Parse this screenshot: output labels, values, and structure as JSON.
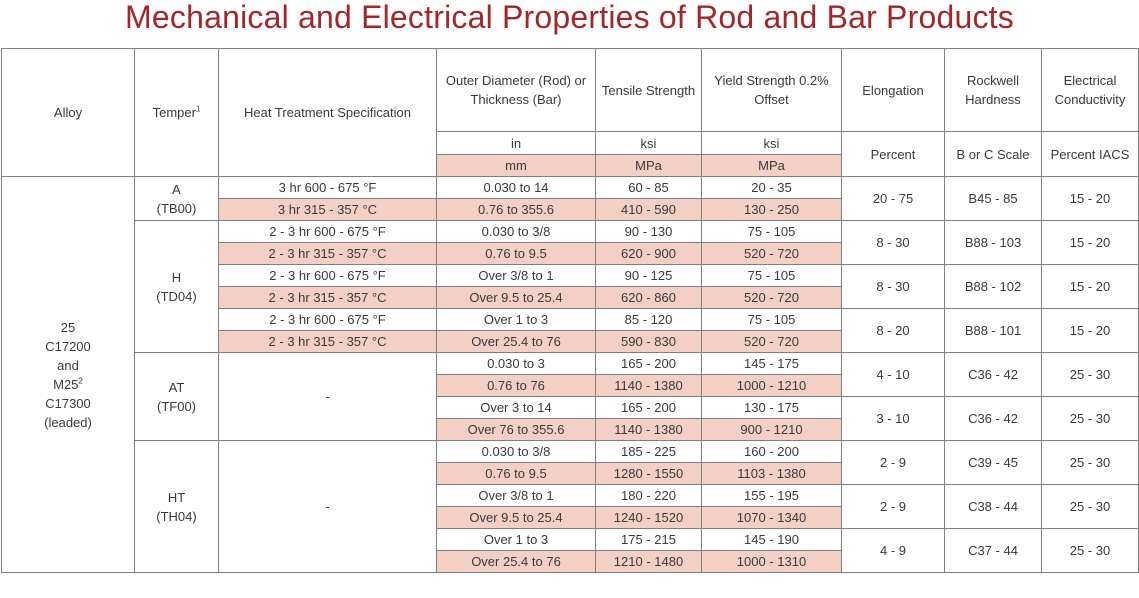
{
  "title": "Mechanical and Electrical Properties of Rod and Bar Products",
  "headers": {
    "alloy": "Alloy",
    "temper": "Temper",
    "temper_sup": "1",
    "heat": "Heat Treatment Specification",
    "od": "Outer Diameter (Rod) or Thickness (Bar)",
    "tensile": "Tensile Strength",
    "yield": "Yield Strength 0.2% Offset",
    "elong": "Elongation",
    "rockwell": "Rockwell Hardness",
    "elec": "Electrical Conductivity",
    "units_imperial": {
      "od": "in",
      "tensile": "ksi",
      "yield": "ksi"
    },
    "units_metric": {
      "od": "mm",
      "tensile": "MPa",
      "yield": "MPa"
    },
    "elong_unit": "Percent",
    "rockwell_unit": "B or C Scale",
    "elec_unit": "Percent IACS"
  },
  "alloy": {
    "line1": "25",
    "line2": "C17200",
    "line3": "and",
    "line4": "M25",
    "line4_sup": "2",
    "line5": "C17300",
    "line6": "(leaded)"
  },
  "tempers": {
    "a": [
      "A",
      "(TB00)"
    ],
    "h": [
      "H",
      "(TD04)"
    ],
    "at": [
      "AT",
      "(TF00)"
    ],
    "ht": [
      "HT",
      "(TH04)"
    ]
  },
  "dash": "-",
  "rows": [
    {
      "heat": "3 hr 600 - 675 °F",
      "od": "0.030 to 14",
      "ts": "60 - 85",
      "ys": "20 - 35"
    },
    {
      "heat": "3 hr 315 - 357 °C",
      "od": "0.76 to 355.6",
      "ts": "410 - 590",
      "ys": "130 - 250"
    },
    {
      "heat": "2 - 3 hr 600 - 675 °F",
      "od": "0.030 to 3/8",
      "ts": "90 - 130",
      "ys": "75 - 105"
    },
    {
      "heat": "2 - 3 hr 315 - 357 °C",
      "od": "0.76 to 9.5",
      "ts": "620 - 900",
      "ys": "520 - 720"
    },
    {
      "heat": "2 - 3 hr 600 - 675 °F",
      "od": "Over 3/8 to 1",
      "ts": "90 - 125",
      "ys": "75 - 105"
    },
    {
      "heat": "2 - 3 hr 315 - 357 °C",
      "od": "Over 9.5 to 25.4",
      "ts": "620 - 860",
      "ys": "520 - 720"
    },
    {
      "heat": "2 - 3 hr 600 - 675 °F",
      "od": "Over 1 to 3",
      "ts": "85 - 120",
      "ys": "75 - 105"
    },
    {
      "heat": "2 - 3 hr 315 - 357 °C",
      "od": "Over 25.4 to 76",
      "ts": "590 - 830",
      "ys": "520 - 720"
    },
    {
      "od": "0.030 to 3",
      "ts": "165 - 200",
      "ys": "145 - 175"
    },
    {
      "od": "0.76 to 76",
      "ts": "1140 - 1380",
      "ys": "1000 - 1210"
    },
    {
      "od": "Over 3 to 14",
      "ts": "165 - 200",
      "ys": "130 - 175"
    },
    {
      "od": "Over 76 to 355.6",
      "ts": "1140 - 1380",
      "ys": "900 - 1210"
    },
    {
      "od": "0.030 to 3/8",
      "ts": "185 - 225",
      "ys": "160 - 200"
    },
    {
      "od": "0.76 to 9.5",
      "ts": "1280 - 1550",
      "ys": "1103 - 1380"
    },
    {
      "od": "Over 3/8 to 1",
      "ts": "180 - 220",
      "ys": "155 - 195"
    },
    {
      "od": "Over 9.5 to 25.4",
      "ts": "1240 - 1520",
      "ys": "1070 - 1340"
    },
    {
      "od": "Over 1 to 3",
      "ts": "175 - 215",
      "ys": "145 - 190"
    },
    {
      "od": "Over 25.4 to 76",
      "ts": "1210 - 1480",
      "ys": "1000 - 1310"
    }
  ],
  "groups": [
    {
      "el": "20 - 75",
      "rh": "B45 - 85",
      "ec": "15 - 20"
    },
    {
      "el": "8 - 30",
      "rh": "B88 - 103",
      "ec": "15 - 20"
    },
    {
      "el": "8 - 30",
      "rh": "B88 - 102",
      "ec": "15 - 20"
    },
    {
      "el": "8 - 20",
      "rh": "B88 - 101",
      "ec": "15 - 20"
    },
    {
      "el": "4 - 10",
      "rh": "C36 - 42",
      "ec": "25 - 30"
    },
    {
      "el": "3 - 10",
      "rh": "C36 - 42",
      "ec": "25 - 30"
    },
    {
      "el": "2 - 9",
      "rh": "C39 - 45",
      "ec": "25 - 30"
    },
    {
      "el": "2 - 9",
      "rh": "C38 - 44",
      "ec": "25 - 30"
    },
    {
      "el": "4 - 9",
      "rh": "C37 - 44",
      "ec": "25 - 30"
    }
  ]
}
